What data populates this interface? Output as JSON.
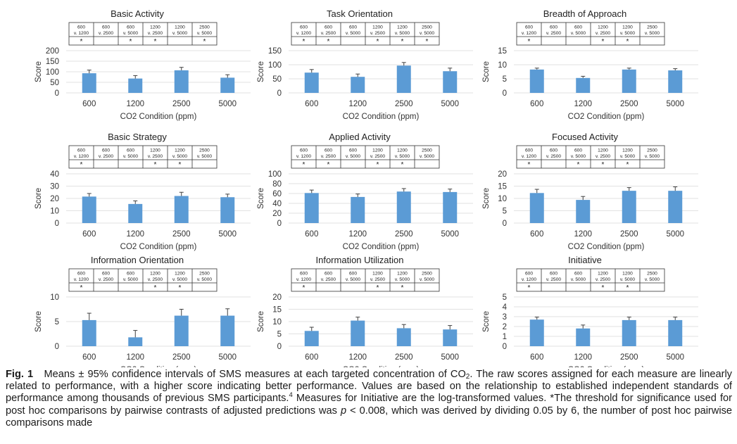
{
  "figure": {
    "common": {
      "xlabel": "CO2 Condition (ppm)",
      "ylabel": "Score",
      "categories": [
        "600",
        "1200",
        "2500",
        "5000"
      ],
      "contrasts_top": [
        "600",
        "600",
        "600",
        "1200",
        "1200",
        "2500"
      ],
      "contrasts_bottom": [
        "v. 1200",
        "v. 2500",
        "v. 5000",
        "v. 2500",
        "v. 5000",
        "v. 5000"
      ],
      "significance_marker": "*",
      "bar_color": "#5b9bd5",
      "error_color": "#404040",
      "grid_color": "#d9d9d9"
    }
  },
  "chart_data": [
    {
      "type": "bar",
      "title": "Basic Activity",
      "yticks": [
        0,
        50,
        100,
        150,
        200
      ],
      "ylim": [
        0,
        200
      ],
      "values": [
        93,
        68,
        107,
        72
      ],
      "upper": [
        108,
        82,
        121,
        86
      ],
      "significant": [
        true,
        false,
        true,
        true,
        false,
        true
      ]
    },
    {
      "type": "bar",
      "title": "Task Orientation",
      "yticks": [
        0,
        50,
        100,
        150
      ],
      "ylim": [
        0,
        150
      ],
      "values": [
        72,
        57,
        97,
        77
      ],
      "upper": [
        83,
        67,
        108,
        88
      ],
      "significant": [
        true,
        true,
        false,
        true,
        true,
        true
      ]
    },
    {
      "type": "bar",
      "title": "Breadth of Approach",
      "yticks": [
        0,
        5,
        10,
        15
      ],
      "ylim": [
        0,
        15
      ],
      "values": [
        8.3,
        5.3,
        8.3,
        8.0
      ],
      "upper": [
        8.8,
        5.9,
        8.8,
        8.6
      ],
      "significant": [
        true,
        false,
        false,
        true,
        true,
        false
      ]
    },
    {
      "type": "bar",
      "title": "Basic Strategy",
      "yticks": [
        0,
        10,
        20,
        30,
        40
      ],
      "ylim": [
        0,
        40
      ],
      "values": [
        21.5,
        15.5,
        22,
        21
      ],
      "upper": [
        24,
        18,
        25,
        23.5
      ],
      "significant": [
        true,
        false,
        false,
        true,
        true,
        false
      ]
    },
    {
      "type": "bar",
      "title": "Applied Activity",
      "yticks": [
        0,
        20,
        40,
        60,
        80,
        100
      ],
      "ylim": [
        0,
        100
      ],
      "values": [
        61,
        53,
        64,
        63
      ],
      "upper": [
        67,
        59,
        70,
        69
      ],
      "significant": [
        true,
        true,
        false,
        true,
        true,
        false
      ]
    },
    {
      "type": "bar",
      "title": "Focused Activity",
      "yticks": [
        0,
        5,
        10,
        15,
        20
      ],
      "ylim": [
        0,
        20
      ],
      "values": [
        12.2,
        9.4,
        13.1,
        13.1
      ],
      "upper": [
        13.7,
        10.8,
        14.4,
        14.7
      ],
      "significant": [
        true,
        false,
        true,
        true,
        true,
        false
      ]
    },
    {
      "type": "bar",
      "title": "Information Orientation",
      "yticks": [
        0,
        5,
        10
      ],
      "ylim": [
        0,
        10
      ],
      "values": [
        5.3,
        1.8,
        6.2,
        6.2
      ],
      "upper": [
        6.7,
        3.2,
        7.5,
        7.6
      ],
      "significant": [
        true,
        false,
        false,
        true,
        true,
        false
      ]
    },
    {
      "type": "bar",
      "title": "Information Utilization",
      "yticks": [
        0,
        5,
        10,
        15,
        20
      ],
      "ylim": [
        0,
        20
      ],
      "values": [
        6.2,
        10.4,
        7.3,
        6.8
      ],
      "upper": [
        7.7,
        11.8,
        8.8,
        8.4
      ],
      "significant": [
        true,
        false,
        false,
        true,
        true,
        false
      ]
    },
    {
      "type": "bar",
      "title": "Initiative",
      "yticks": [
        0,
        1,
        2,
        3,
        4,
        5
      ],
      "ylim": [
        0,
        5
      ],
      "values": [
        2.7,
        1.8,
        2.65,
        2.65
      ],
      "upper": [
        2.95,
        2.15,
        2.95,
        2.95
      ],
      "significant": [
        true,
        false,
        false,
        true,
        true,
        false
      ]
    }
  ],
  "caption": {
    "label": "Fig. 1",
    "p1": "Means ± 95% confidence intervals of SMS measures at each targeted concentration of CO",
    "sub": "2",
    "p2": ". The raw scores assigned for each measure are linearly related to performance, with a higher score indicating better performance. Values are based on the relationship to established independent standards of performance among thousands of previous SMS participants.",
    "sup": "4",
    "p3": " Measures for Initiative are the log-transformed values. *The threshold for significance used for post hoc comparisons by pairwise contrasts of adjusted predictions was ",
    "p_symbol": "p",
    "p4": " < 0.008, which was derived by dividing 0.05 by 6, the number of post hoc pairwise comparisons made"
  }
}
